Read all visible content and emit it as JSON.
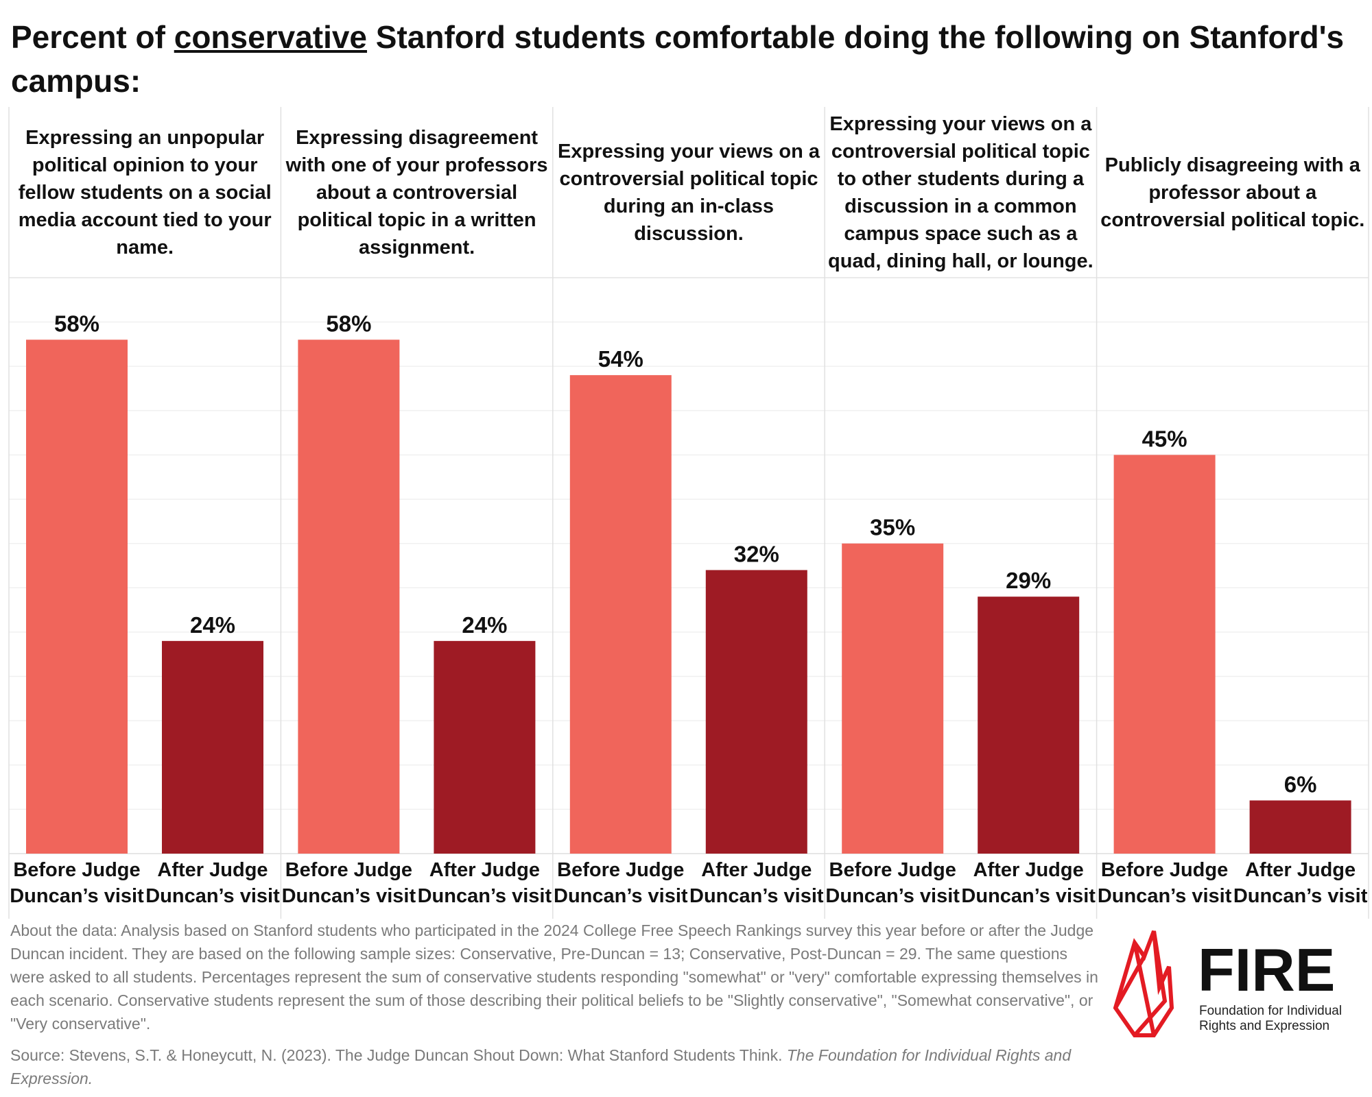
{
  "title_parts": {
    "pre": "Percent of ",
    "underlined": "conservative",
    "post": " Stanford students comfortable doing the following on Stanford's campus:"
  },
  "chart_data": {
    "type": "bar",
    "title": "Percent of conservative Stanford students comfortable doing the following on Stanford's campus:",
    "ylim": [
      0,
      65
    ],
    "grid": true,
    "panels": [
      {
        "label": "Expressing an unpopular political opinion to your fellow students on a social media account tied to your name.",
        "categories": [
          "Before Judge Duncan’s visit",
          "After Judge Duncan’s visit"
        ],
        "values": [
          58,
          24
        ],
        "value_labels": [
          "58%",
          "24%"
        ]
      },
      {
        "label": "Expressing disagreement with one of your professors about a controversial political topic in a written assignment.",
        "categories": [
          "Before Judge Duncan’s visit",
          "After Judge Duncan’s visit"
        ],
        "values": [
          58,
          24
        ],
        "value_labels": [
          "58%",
          "24%"
        ]
      },
      {
        "label": "Expressing your views on a controversial political topic during an in-class discussion.",
        "categories": [
          "Before Judge Duncan’s visit",
          "After Judge Duncan’s visit"
        ],
        "values": [
          54,
          32
        ],
        "value_labels": [
          "54%",
          "32%"
        ]
      },
      {
        "label": "Expressing your views on a controversial political topic to other students during a discussion in a common campus space such as a quad, dining hall, or lounge.",
        "categories": [
          "Before Judge Duncan’s visit",
          "After Judge Duncan’s visit"
        ],
        "values": [
          35,
          29
        ],
        "value_labels": [
          "35%",
          "29%"
        ]
      },
      {
        "label": "Publicly disagreeing with a professor about a controversial political topic.",
        "categories": [
          "Before Judge Duncan’s visit",
          "After Judge Duncan’s visit"
        ],
        "values": [
          45,
          6
        ],
        "value_labels": [
          "45%",
          "6%"
        ]
      }
    ],
    "colors": {
      "before": "#F0655B",
      "after": "#9E1B24"
    }
  },
  "notes": {
    "about": "About the data: Analysis based on Stanford students who participated in the 2024 College Free Speech Rankings survey this year before or after the Judge Duncan incident. They are based on the following sample sizes: Conservative, Pre-Duncan = 13; Conservative, Post-Duncan = 29. The same questions were asked to all students. Percentages represent the sum of conservative students responding \"somewhat\" or \"very\" comfortable expressing themselves in each scenario. Conservative students represent the sum of those describing their political beliefs to be \"Slightly conservative\", \"Somewhat conservative\", or \"Very conservative\".",
    "source_plain": "Source: Stevens, S.T. & Honeycutt, N. (2023). The Judge Duncan Shout Down: What Stanford Students Think. ",
    "source_italic": "The Foundation for Individual Rights and Expression."
  },
  "logo": {
    "name": "FIRE",
    "tagline1": "Foundation for Individual",
    "tagline2": "Rights and Expression",
    "color": "#E31B23"
  }
}
